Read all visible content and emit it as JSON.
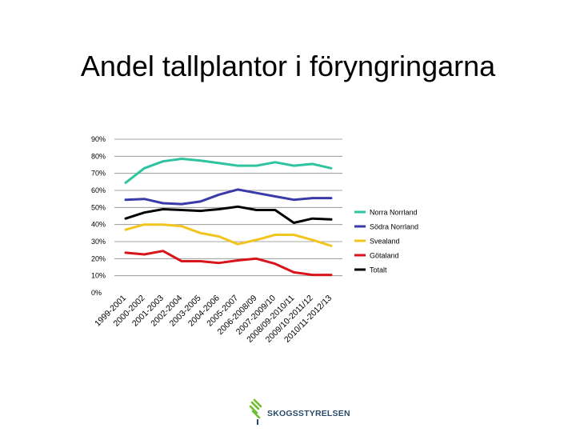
{
  "title": "Andel tallplantor i föryngringarna",
  "logo_text": "SKOGSSTYRELSEN",
  "colors": {
    "norra": "#2ec4a0",
    "sodra": "#3a3aa8",
    "svealand": "#f2c51e",
    "gotaland": "#d8141c",
    "totalt": "#000000",
    "grid": "#8a8a8a"
  },
  "chart_data": {
    "type": "line",
    "ylim": [
      0,
      90
    ],
    "yticks": [
      "0%",
      "10%",
      "20%",
      "30%",
      "40%",
      "50%",
      "60%",
      "70%",
      "80%",
      "90%"
    ],
    "grid": true,
    "legend_position": "right",
    "categories": [
      "1999-2001",
      "2000-2002",
      "2001-2003",
      "2002-2004",
      "2003-2005",
      "2004-2006",
      "2005-2007",
      "2006-2008/09",
      "2007-2009/10",
      "2008/09-2010/11",
      "2009/10-2011/12",
      "2010/11-2012/13"
    ],
    "series": [
      {
        "name": "Norra Norrland",
        "color_key": "norra",
        "values": [
          64.5,
          73,
          77,
          78.5,
          77.5,
          76,
          74.5,
          74.5,
          76.5,
          74.5,
          75.5,
          73
        ]
      },
      {
        "name": "Södra Norrland",
        "color_key": "sodra",
        "values": [
          54.5,
          55,
          52.5,
          52,
          53.5,
          57.5,
          60.5,
          58.5,
          56.5,
          54.5,
          55.5,
          55.5
        ]
      },
      {
        "name": "Svealand",
        "color_key": "svealand",
        "values": [
          37,
          40,
          40,
          39,
          35,
          33,
          28.5,
          31,
          34,
          34,
          31,
          27.5
        ]
      },
      {
        "name": "Götaland",
        "color_key": "gotaland",
        "values": [
          23.5,
          22.5,
          24.5,
          18.5,
          18.5,
          17.5,
          19,
          20,
          17,
          12,
          10.5,
          10.5
        ]
      },
      {
        "name": "Totalt",
        "color_key": "totalt",
        "values": [
          43.5,
          47,
          49,
          48.5,
          48,
          49,
          50.5,
          48.5,
          48.5,
          41,
          43.5,
          43
        ]
      }
    ]
  }
}
